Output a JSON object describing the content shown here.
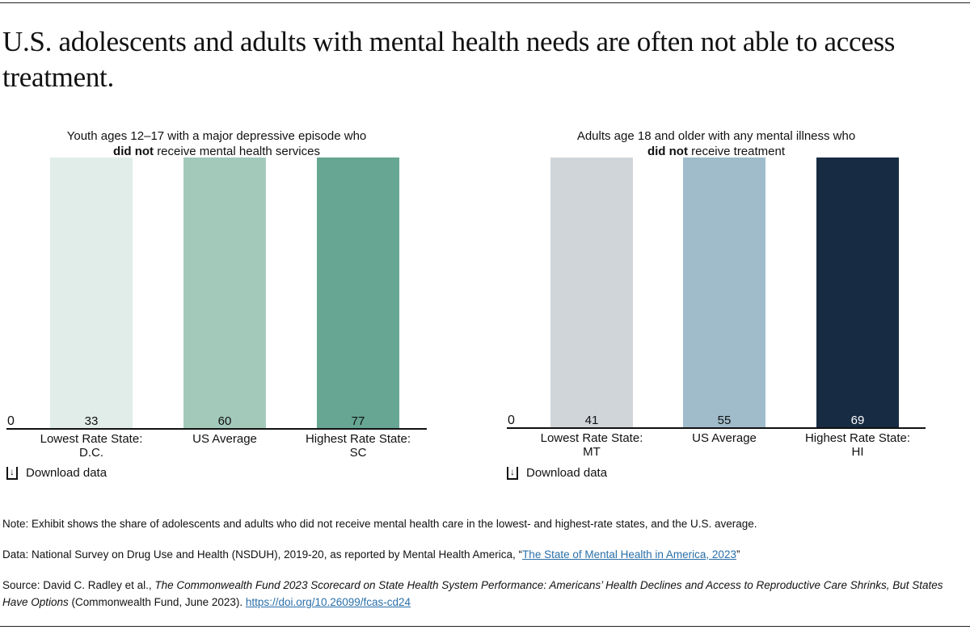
{
  "title": "U.S. adolescents and adults with mental health needs are often not able to access treatment.",
  "download_label": "Download data",
  "chart_data": [
    {
      "type": "bar",
      "title_line1": "Youth ages 12–17 with a major depressive episode who",
      "title_bold": "did not",
      "title_rest": "receive mental health services",
      "categories": [
        [
          "Lowest Rate State:",
          "D.C."
        ],
        [
          "US Average"
        ],
        [
          "Highest Rate State:",
          "SC"
        ]
      ],
      "values": [
        33,
        60,
        77
      ],
      "colors": [
        "#e0ede8",
        "#a3c9bb",
        "#66a692"
      ],
      "label_colors": [
        "#111111",
        "#111111",
        "#111111"
      ],
      "yticks": [
        0,
        10,
        20,
        30,
        40,
        50,
        60,
        70,
        80,
        90
      ],
      "ylim": [
        0,
        90
      ],
      "grid": true
    },
    {
      "type": "bar",
      "title_line1": "Adults age 18 and older with any mental illness who",
      "title_bold": "did not",
      "title_rest": "receive treatment",
      "categories": [
        [
          "Lowest Rate State:",
          "MT"
        ],
        [
          "US Average"
        ],
        [
          "Highest Rate State:",
          "HI"
        ]
      ],
      "values": [
        41,
        55,
        69
      ],
      "colors": [
        "#d0d5d9",
        "#a0bccb",
        "#172b42"
      ],
      "label_colors": [
        "#111111",
        "#111111",
        "#ffffff"
      ],
      "yticks": [
        0,
        10,
        20,
        30,
        40,
        50,
        60,
        70,
        80,
        90
      ],
      "ylim": [
        0,
        90
      ],
      "grid": true
    }
  ],
  "footer": {
    "note": "Note: Exhibit shows the share of adolescents and adults who did not receive mental health care in the lowest- and highest-rate states, and the U.S. average.",
    "data_prefix": "Data: National Survey on Drug Use and Health (NSDUH), 2019-20, as reported by Mental Health America, “",
    "data_link": "The State of Mental Health in America, 2023",
    "data_suffix": "”",
    "source_prefix": "Source: David C. Radley et al., ",
    "source_italic": "The Commonwealth Fund 2023 Scorecard on State Health System Performance: Americans’ Health Declines and Access to Reproductive Care Shrinks, But States Have Options",
    "source_mid": " (Commonwealth Fund, June 2023). ",
    "source_link": "https://doi.org/10.26099/fcas-cd24"
  }
}
